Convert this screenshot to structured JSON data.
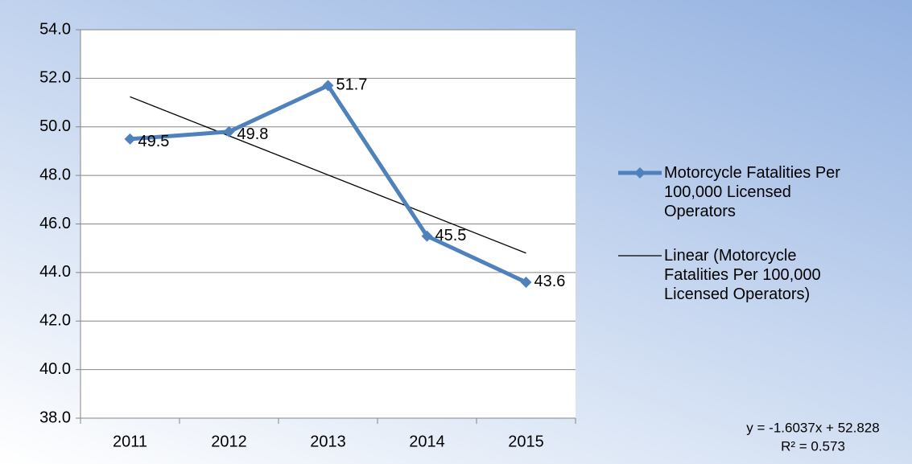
{
  "chart_data": {
    "type": "line",
    "categories": [
      "2011",
      "2012",
      "2013",
      "2014",
      "2015"
    ],
    "series": [
      {
        "name": "Motorcycle Fatalities Per 100,000 Licensed Operators",
        "color": "#4f81bd",
        "values": [
          49.5,
          49.8,
          51.7,
          45.5,
          43.6
        ],
        "value_labels": [
          "49.5",
          "49.8",
          "51.7",
          "45.5",
          "43.6"
        ]
      }
    ],
    "trendline": {
      "name": "Linear (Motorcycle Fatalities Per 100,000 Licensed Operators)",
      "color": "#000000",
      "equation": "y = -1.6037x + 52.828",
      "r2": "R² = 0.573"
    },
    "ylim": [
      38,
      54
    ],
    "yticks": [
      {
        "value": 38,
        "label": "38.0"
      },
      {
        "value": 40,
        "label": "40.0"
      },
      {
        "value": 42,
        "label": "42.0"
      },
      {
        "value": 44,
        "label": "44.0"
      },
      {
        "value": 46,
        "label": "46.0"
      },
      {
        "value": 48,
        "label": "48.0"
      },
      {
        "value": 50,
        "label": "50.0"
      },
      {
        "value": 52,
        "label": "52.0"
      },
      {
        "value": 54,
        "label": "54.0"
      }
    ],
    "grid": true
  }
}
